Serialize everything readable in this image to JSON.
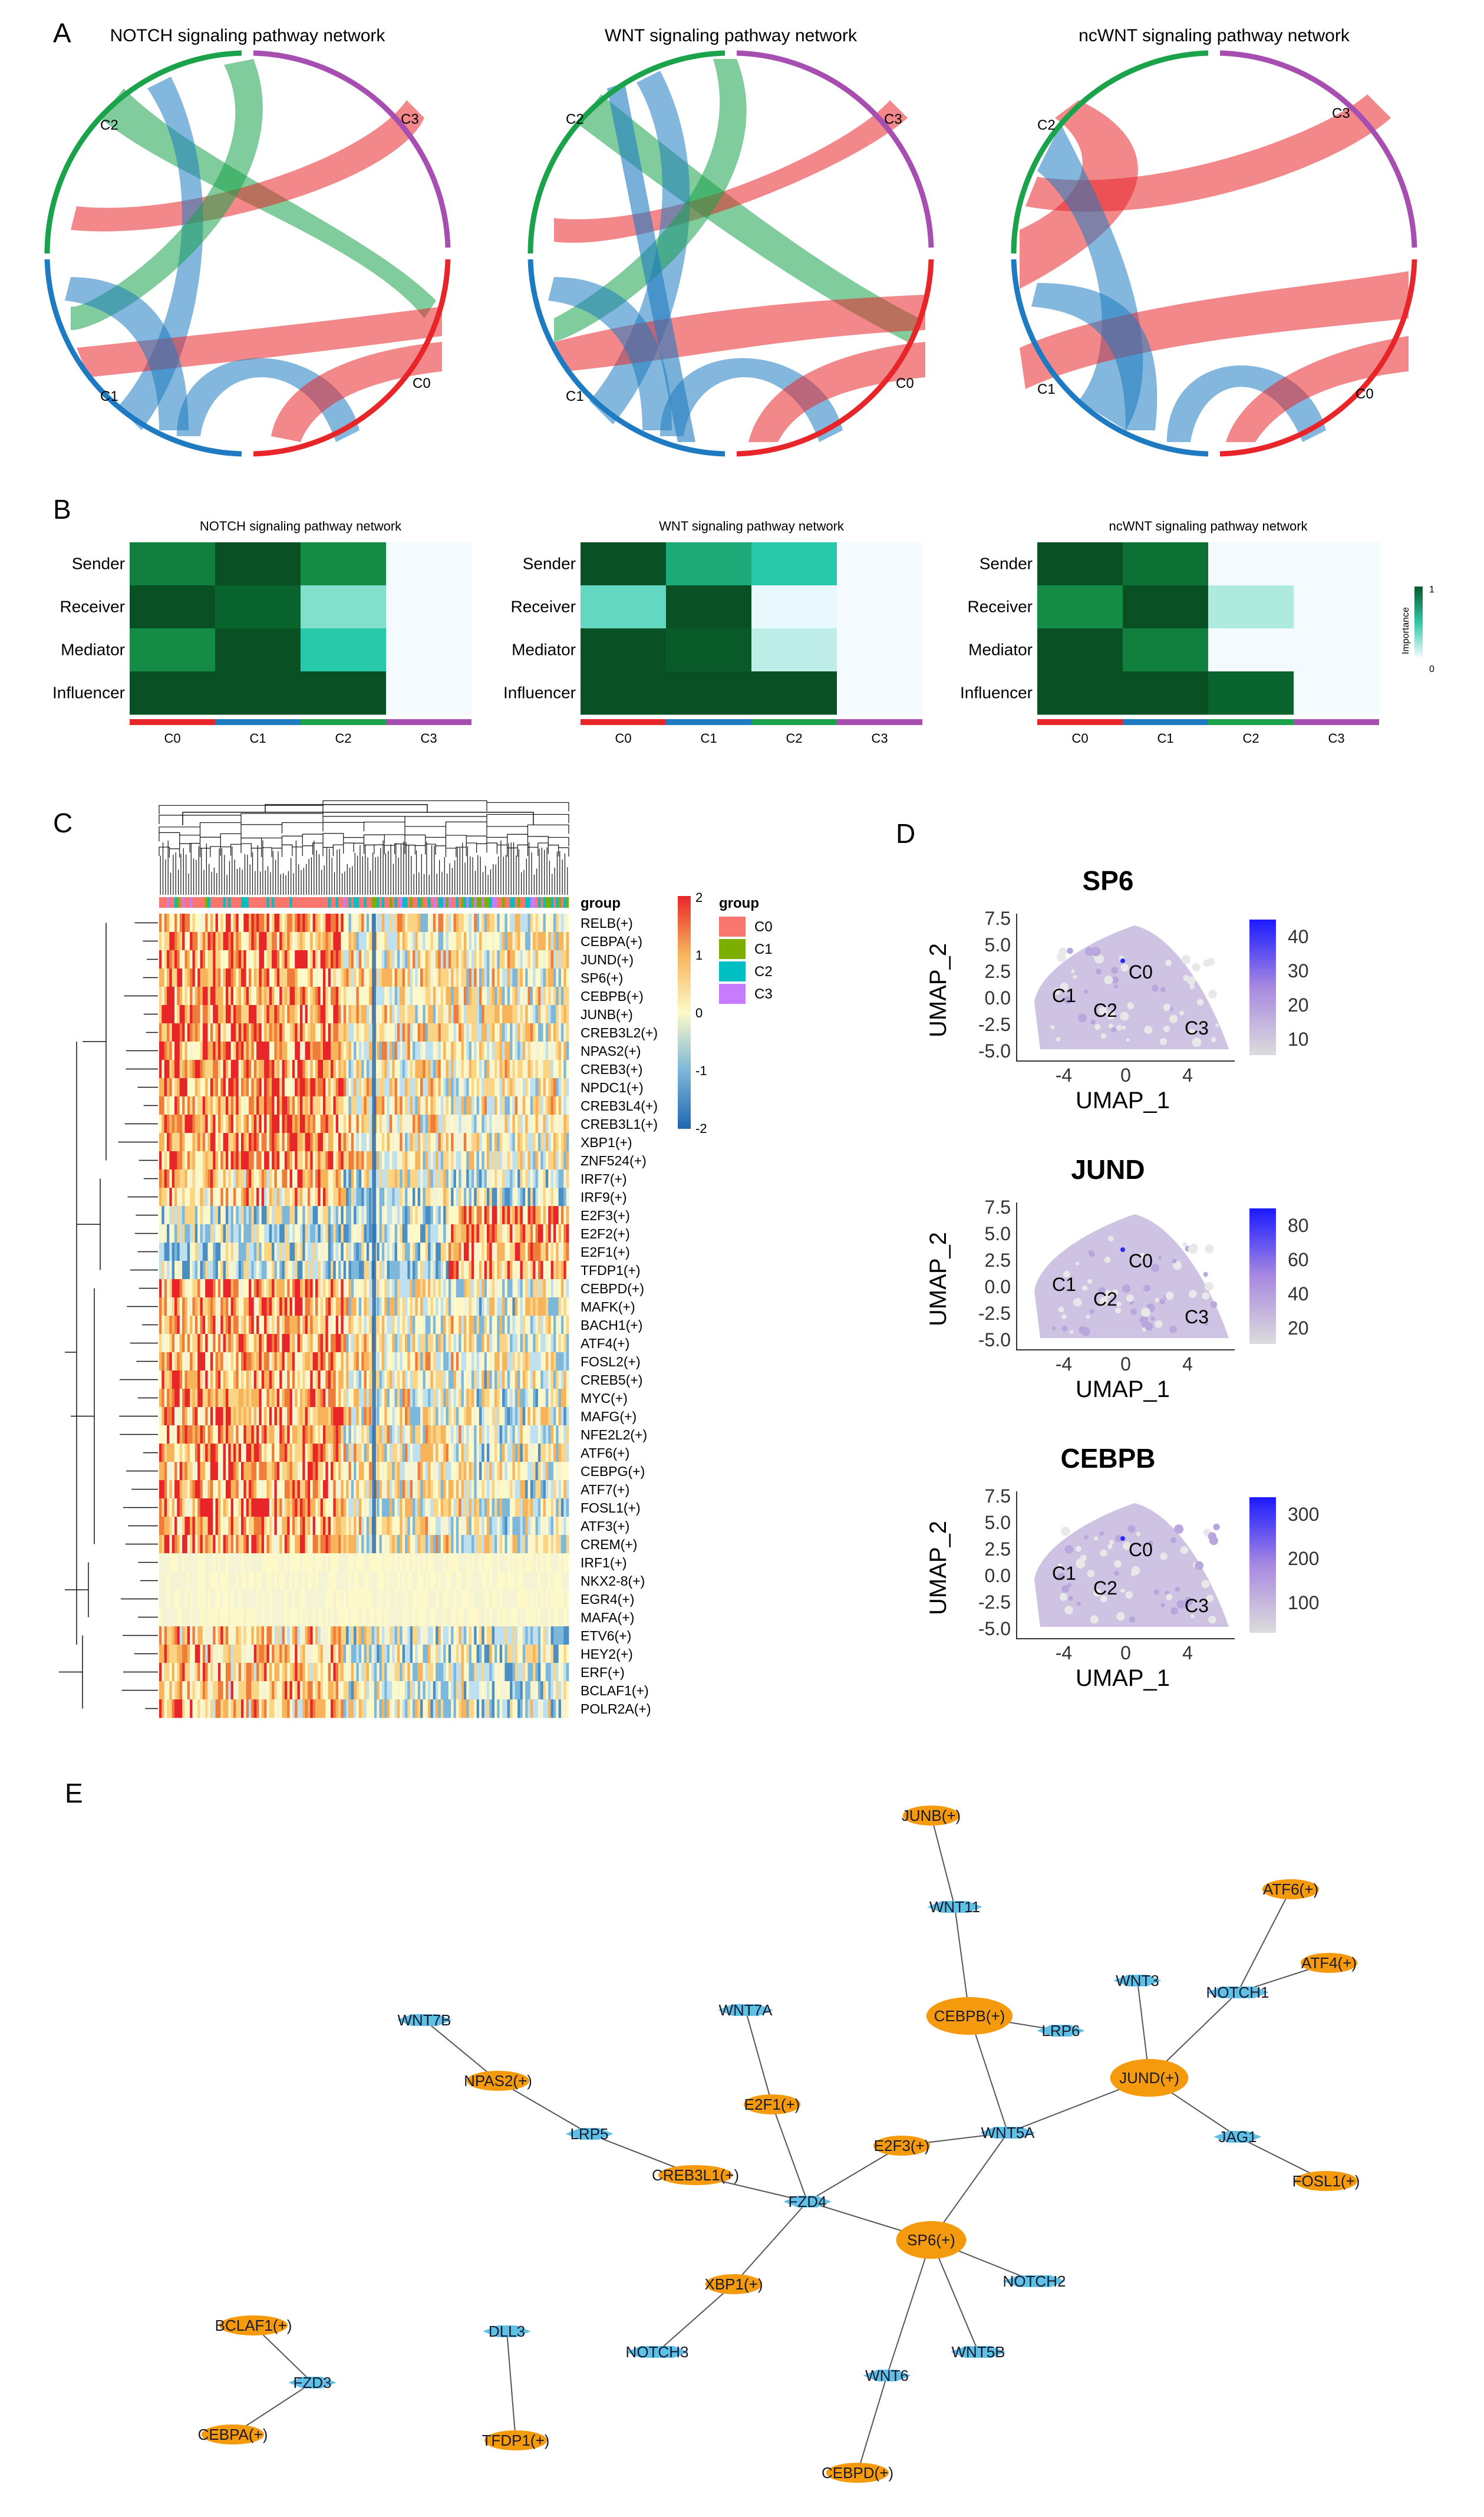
{
  "panels": {
    "A": "A",
    "B": "B",
    "C": "C",
    "D": "D",
    "E": "E"
  },
  "colors": {
    "C0": "#e8262a",
    "C1": "#1f7bc1",
    "C2": "#1aa34a",
    "C3": "#a64fb1"
  },
  "panel_a": {
    "chords": [
      {
        "title": "NOTCH signaling pathway network",
        "labels": [
          "C0",
          "C1",
          "C2",
          "C3"
        ]
      },
      {
        "title": "WNT signaling pathway network",
        "labels": [
          "C0",
          "C1",
          "C2",
          "C3"
        ]
      },
      {
        "title": "ncWNT signaling pathway network",
        "labels": [
          "C0",
          "C1",
          "C2",
          "C3"
        ]
      }
    ]
  },
  "panel_b": {
    "heatmaps": [
      {
        "title": "NOTCH signaling pathway network",
        "rows": [
          "Sender",
          "Receiver",
          "Mediator",
          "Influencer"
        ],
        "cols": [
          "C0",
          "C1",
          "C2",
          "C3"
        ],
        "values": [
          [
            0.75,
            0.95,
            0.7,
            0
          ],
          [
            0.95,
            0.85,
            0.35,
            0
          ],
          [
            0.7,
            0.95,
            0.5,
            0
          ],
          [
            0.95,
            0.95,
            0.95,
            0
          ]
        ]
      },
      {
        "title": "WNT signaling pathway network",
        "rows": [
          "Sender",
          "Receiver",
          "Mediator",
          "Influencer"
        ],
        "cols": [
          "C0",
          "C1",
          "C2",
          "C3"
        ],
        "values": [
          [
            0.95,
            0.6,
            0.5,
            0
          ],
          [
            0.4,
            0.95,
            0.05,
            0
          ],
          [
            0.95,
            0.9,
            0.2,
            0
          ],
          [
            0.95,
            0.95,
            0.95,
            0
          ]
        ]
      },
      {
        "title": "ncWNT signaling pathway network",
        "rows": [
          "Sender",
          "Receiver",
          "Mediator",
          "Influencer"
        ],
        "cols": [
          "C0",
          "C1",
          "C2",
          "C3"
        ],
        "values": [
          [
            0.95,
            0.8,
            0,
            0
          ],
          [
            0.7,
            0.95,
            0.25,
            0
          ],
          [
            0.95,
            0.75,
            0,
            0
          ],
          [
            0.95,
            0.95,
            0.85,
            0
          ]
        ]
      }
    ],
    "legend_title": "Importance",
    "legend_ticks": [
      "1",
      "0"
    ]
  },
  "panel_c": {
    "genes": [
      "RELB(+)",
      "CEBPA(+)",
      "JUND(+)",
      "SP6(+)",
      "CEBPB(+)",
      "JUNB(+)",
      "CREB3L2(+)",
      "NPAS2(+)",
      "CREB3(+)",
      "NPDC1(+)",
      "CREB3L4(+)",
      "CREB3L1(+)",
      "XBP1(+)",
      "ZNF524(+)",
      "IRF7(+)",
      "IRF9(+)",
      "E2F3(+)",
      "E2F2(+)",
      "E2F1(+)",
      "TFDP1(+)",
      "CEBPD(+)",
      "MAFK(+)",
      "BACH1(+)",
      "ATF4(+)",
      "FOSL2(+)",
      "CREB5(+)",
      "MYC(+)",
      "MAFG(+)",
      "NFE2L2(+)",
      "ATF6(+)",
      "CEBPG(+)",
      "ATF7(+)",
      "FOSL1(+)",
      "ATF3(+)",
      "CREM(+)",
      "IRF1(+)",
      "NKX2-8(+)",
      "EGR4(+)",
      "MAFA(+)",
      "ETV6(+)",
      "HEY2(+)",
      "ERF(+)",
      "BCLAF1(+)",
      "POLR2A(+)"
    ],
    "annotation_label": "group",
    "scale_ticks": [
      "2",
      "1",
      "0",
      "-1",
      "-2"
    ],
    "legend_title": "group",
    "legend_items": [
      {
        "label": "C0",
        "color": "#f8766d"
      },
      {
        "label": "C1",
        "color": "#7cae00"
      },
      {
        "label": "C2",
        "color": "#00bfc4"
      },
      {
        "label": "C3",
        "color": "#c77cff"
      }
    ]
  },
  "panel_d": {
    "plots": [
      {
        "title": "SP6",
        "scale": [
          "40",
          "30",
          "20",
          "10"
        ]
      },
      {
        "title": "JUND",
        "scale": [
          "80",
          "60",
          "40",
          "20"
        ]
      },
      {
        "title": "CEBPB",
        "scale": [
          "300",
          "200",
          "100"
        ]
      }
    ],
    "xlabel": "UMAP_1",
    "ylabel": "UMAP_2",
    "xticks": [
      "-4",
      "0",
      "4"
    ],
    "yticks": [
      "7.5",
      "5.0",
      "2.5",
      "0.0",
      "-2.5",
      "-5.0"
    ],
    "clusters": [
      "C0",
      "C1",
      "C2",
      "C3"
    ]
  },
  "panel_e": {
    "nodes": [
      {
        "id": "JUNB(+)",
        "type": "tf"
      },
      {
        "id": "WNT11",
        "type": "gene"
      },
      {
        "id": "ATF6(+)",
        "type": "tf"
      },
      {
        "id": "WNT3",
        "type": "gene"
      },
      {
        "id": "NOTCH1",
        "type": "gene"
      },
      {
        "id": "ATF4(+)",
        "type": "tf"
      },
      {
        "id": "CEBPB(+)",
        "type": "tf"
      },
      {
        "id": "LRP6",
        "type": "gene"
      },
      {
        "id": "WNT7B",
        "type": "gene"
      },
      {
        "id": "WNT7A",
        "type": "gene"
      },
      {
        "id": "NPAS2(+)",
        "type": "tf"
      },
      {
        "id": "JUND(+)",
        "type": "tf"
      },
      {
        "id": "E2F1(+)",
        "type": "tf"
      },
      {
        "id": "LRP5",
        "type": "gene"
      },
      {
        "id": "E2F3(+)",
        "type": "tf"
      },
      {
        "id": "WNT5A",
        "type": "gene"
      },
      {
        "id": "JAG1",
        "type": "gene"
      },
      {
        "id": "CREB3L1(+)",
        "type": "tf"
      },
      {
        "id": "FOSL1(+)",
        "type": "tf"
      },
      {
        "id": "FZD4",
        "type": "gene"
      },
      {
        "id": "SP6(+)",
        "type": "tf"
      },
      {
        "id": "XBP1(+)",
        "type": "tf"
      },
      {
        "id": "NOTCH2",
        "type": "gene"
      },
      {
        "id": "BCLAF1(+)",
        "type": "tf"
      },
      {
        "id": "DLL3",
        "type": "gene"
      },
      {
        "id": "NOTCH3",
        "type": "gene"
      },
      {
        "id": "WNT6",
        "type": "gene"
      },
      {
        "id": "WNT5B",
        "type": "gene"
      },
      {
        "id": "FZD3",
        "type": "gene"
      },
      {
        "id": "CEBPA(+)",
        "type": "tf"
      },
      {
        "id": "TFDP1(+)",
        "type": "tf"
      },
      {
        "id": "CEBPD(+)",
        "type": "tf"
      }
    ],
    "edges": [
      [
        "JUNB(+)",
        "WNT11"
      ],
      [
        "WNT11",
        "CEBPB(+)"
      ],
      [
        "CEBPB(+)",
        "LRP6"
      ],
      [
        "CEBPB(+)",
        "WNT5A"
      ],
      [
        "ATF6(+)",
        "NOTCH1"
      ],
      [
        "WNT3",
        "JUND(+)"
      ],
      [
        "NOTCH1",
        "JUND(+)"
      ],
      [
        "ATF4(+)",
        "NOTCH1"
      ],
      [
        "JUND(+)",
        "WNT5A"
      ],
      [
        "JUND(+)",
        "JAG1"
      ],
      [
        "JAG1",
        "FOSL1(+)"
      ],
      [
        "WNT7B",
        "NPAS2(+)"
      ],
      [
        "NPAS2(+)",
        "LRP5"
      ],
      [
        "LRP5",
        "CREB3L1(+)"
      ],
      [
        "CREB3L1(+)",
        "FZD4"
      ],
      [
        "WNT7A",
        "E2F1(+)"
      ],
      [
        "E2F1(+)",
        "FZD4"
      ],
      [
        "E2F3(+)",
        "FZD4"
      ],
      [
        "E2F3(+)",
        "WNT5A"
      ],
      [
        "WNT5A",
        "SP6(+)"
      ],
      [
        "FZD4",
        "SP6(+)"
      ],
      [
        "FZD4",
        "XBP1(+)"
      ],
      [
        "XBP1(+)",
        "NOTCH3"
      ],
      [
        "SP6(+)",
        "NOTCH2"
      ],
      [
        "SP6(+)",
        "WNT5B"
      ],
      [
        "SP6(+)",
        "WNT6"
      ],
      [
        "WNT6",
        "CEBPD(+)"
      ],
      [
        "BCLAF1(+)",
        "FZD3"
      ],
      [
        "FZD3",
        "CEBPA(+)"
      ],
      [
        "DLL3",
        "TFDP1(+)"
      ]
    ]
  }
}
